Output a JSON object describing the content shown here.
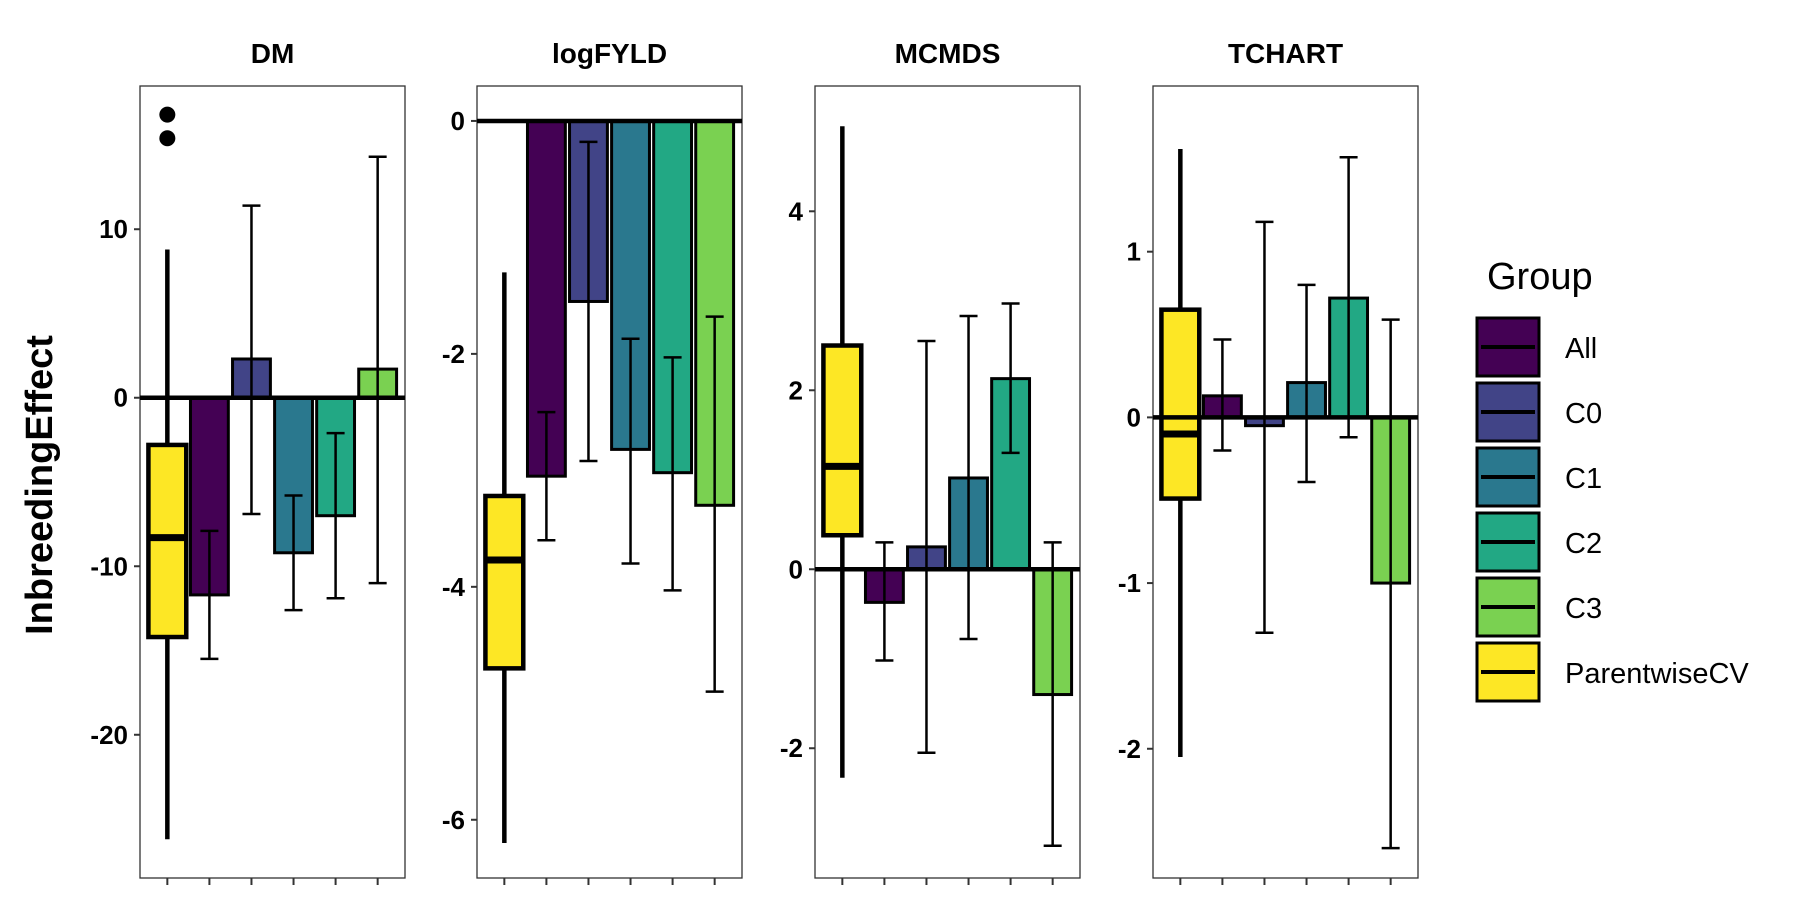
{
  "chart_data": {
    "type": "bar",
    "ylabel": "InbreedingEffect",
    "legend": {
      "title": "Group",
      "position": "right"
    },
    "groups": [
      {
        "name": "All",
        "color": "#440154"
      },
      {
        "name": "C0",
        "color": "#414487"
      },
      {
        "name": "C1",
        "color": "#2a788e"
      },
      {
        "name": "C2",
        "color": "#22a884"
      },
      {
        "name": "C3",
        "color": "#7ad151"
      },
      {
        "name": "ParentwiseCV",
        "color": "#fde725"
      }
    ],
    "facets": [
      {
        "title": "DM",
        "ylim": [
          -28.5,
          18.5
        ],
        "yticks": [
          10,
          0,
          -10,
          -20
        ],
        "ytick_labels": [
          "10",
          "0",
          "-10",
          "-20"
        ],
        "boxplot": {
          "group": "ParentwiseCV",
          "q1": -14.2,
          "median": -8.3,
          "q3": -2.8,
          "whisker_low": -26.2,
          "whisker_high": 8.8,
          "outliers": [
            15.4,
            16.8
          ]
        },
        "bars": [
          {
            "group": "All",
            "value": -11.7,
            "err_low": -15.5,
            "err_high": -7.9
          },
          {
            "group": "C0",
            "value": 2.3,
            "err_low": -6.9,
            "err_high": 11.4
          },
          {
            "group": "C1",
            "value": -9.2,
            "err_low": -12.6,
            "err_high": -5.8
          },
          {
            "group": "C2",
            "value": -7.0,
            "err_low": -11.9,
            "err_high": -2.1
          },
          {
            "group": "C3",
            "value": 1.7,
            "err_low": -11.0,
            "err_high": 14.3
          }
        ]
      },
      {
        "title": "logFYLD",
        "ylim": [
          -6.5,
          0.3
        ],
        "yticks": [
          0,
          -2,
          -4,
          -6
        ],
        "ytick_labels": [
          "0",
          "-2",
          "-4",
          "-6"
        ],
        "boxplot": {
          "group": "ParentwiseCV",
          "q1": -4.7,
          "median": -3.77,
          "q3": -3.22,
          "whisker_low": -6.2,
          "whisker_high": -1.3,
          "outliers": []
        },
        "bars": [
          {
            "group": "All",
            "value": -3.05,
            "err_low": -3.6,
            "err_high": -2.5
          },
          {
            "group": "C0",
            "value": -1.55,
            "err_low": -2.92,
            "err_high": -0.18
          },
          {
            "group": "C1",
            "value": -2.82,
            "err_low": -3.8,
            "err_high": -1.87
          },
          {
            "group": "C2",
            "value": -3.02,
            "err_low": -4.03,
            "err_high": -2.03
          },
          {
            "group": "C3",
            "value": -3.3,
            "err_low": -4.9,
            "err_high": -1.68
          }
        ]
      },
      {
        "title": "MCMDS",
        "ylim": [
          -3.45,
          5.4
        ],
        "yticks": [
          4,
          2,
          0,
          -2
        ],
        "ytick_labels": [
          "4",
          "2",
          "0",
          "-2"
        ],
        "boxplot": {
          "group": "ParentwiseCV",
          "q1": 0.38,
          "median": 1.15,
          "q3": 2.5,
          "whisker_low": -2.33,
          "whisker_high": 4.95,
          "outliers": []
        },
        "bars": [
          {
            "group": "All",
            "value": -0.37,
            "err_low": -1.02,
            "err_high": 0.3
          },
          {
            "group": "C0",
            "value": 0.25,
            "err_low": -2.05,
            "err_high": 2.55
          },
          {
            "group": "C1",
            "value": 1.02,
            "err_low": -0.78,
            "err_high": 2.83
          },
          {
            "group": "C2",
            "value": 2.13,
            "err_low": 1.3,
            "err_high": 2.97
          },
          {
            "group": "C3",
            "value": -1.4,
            "err_low": -3.09,
            "err_high": 0.3
          }
        ]
      },
      {
        "title": "TCHART",
        "ylim": [
          -2.78,
          2.0
        ],
        "yticks": [
          1,
          0,
          -1,
          -2
        ],
        "ytick_labels": [
          "1",
          "0",
          "-1",
          "-2"
        ],
        "boxplot": {
          "group": "ParentwiseCV",
          "q1": -0.49,
          "median": -0.1,
          "q3": 0.65,
          "whisker_low": -2.05,
          "whisker_high": 1.62,
          "outliers": []
        },
        "bars": [
          {
            "group": "All",
            "value": 0.13,
            "err_low": -0.2,
            "err_high": 0.47
          },
          {
            "group": "C0",
            "value": -0.05,
            "err_low": -1.3,
            "err_high": 1.18
          },
          {
            "group": "C1",
            "value": 0.21,
            "err_low": -0.39,
            "err_high": 0.8
          },
          {
            "group": "C2",
            "value": 0.72,
            "err_low": -0.12,
            "err_high": 1.57
          },
          {
            "group": "C3",
            "value": -1.0,
            "err_low": -2.6,
            "err_high": 0.59
          }
        ]
      }
    ]
  }
}
